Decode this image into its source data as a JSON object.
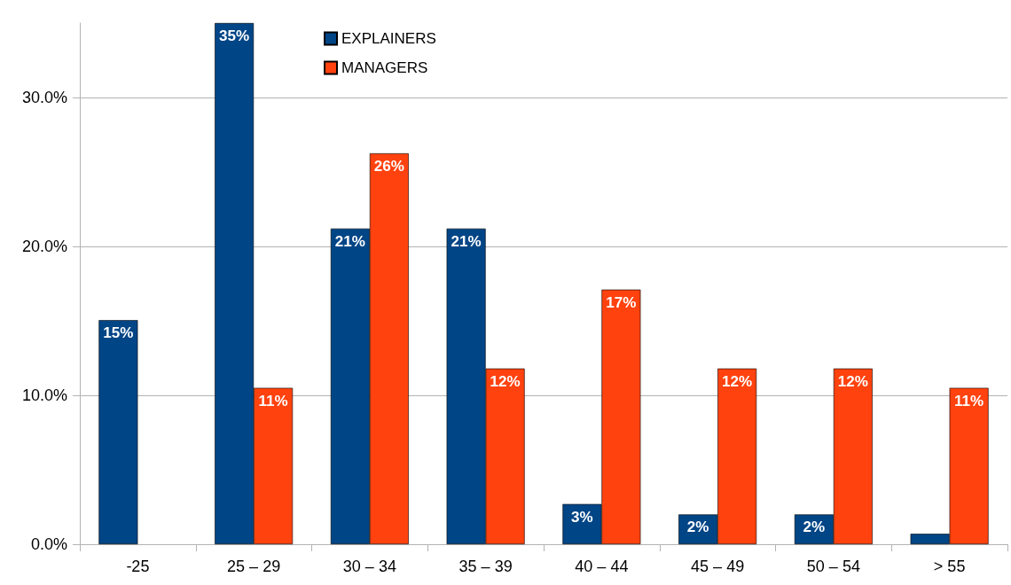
{
  "chart_data": {
    "type": "bar",
    "categories": [
      "-25",
      "25 – 29",
      "30 – 34",
      "35 – 39",
      "40 – 44",
      "45 – 49",
      "50 – 54",
      "> 55"
    ],
    "series": [
      {
        "name": "EXPLAINERS",
        "color": "#004586",
        "values": [
          15.05,
          35,
          21.2,
          21.2,
          2.7,
          2,
          2,
          0.7
        ],
        "value_labels": [
          "15%",
          "35%",
          "21%",
          "21%",
          "3%",
          "2%",
          "2%",
          null
        ]
      },
      {
        "name": "MANAGERS",
        "color": "#ff420e",
        "values": [
          null,
          10.5,
          26.25,
          11.8,
          17.1,
          11.8,
          11.8,
          10.5
        ],
        "value_labels": [
          null,
          "11%",
          "26%",
          "12%",
          "17%",
          "12%",
          "12%",
          "11%"
        ]
      }
    ],
    "ylim": [
      0,
      35
    ],
    "yticks": [
      {
        "value": 0,
        "label": "0.0%"
      },
      {
        "value": 10,
        "label": "10.0%"
      },
      {
        "value": 20,
        "label": "20.0%"
      },
      {
        "value": 30,
        "label": "30.0%"
      }
    ],
    "grid": "y",
    "legend": "top"
  }
}
